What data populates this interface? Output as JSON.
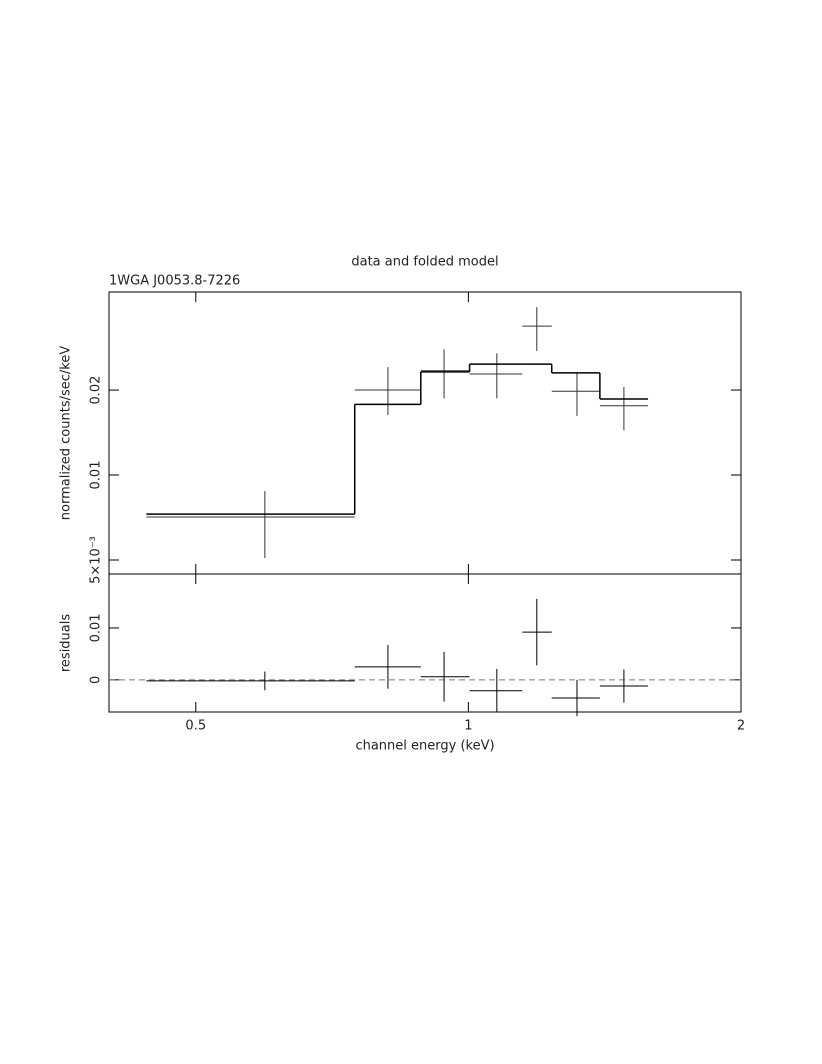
{
  "chart_data": [
    {
      "type": "errorbar",
      "title": "data and folded model",
      "subtitle": "1WGA J0053.8-7226",
      "y_label": "normalized counts/sec/keV",
      "x_log": true,
      "y_log": true,
      "xlim": [
        0.401,
        2
      ],
      "ylim": [
        0.00446,
        0.0445
      ],
      "yticks": [
        {
          "value": 0.005,
          "label": "5×10⁻³"
        },
        0.01,
        0.02
      ],
      "x": [
        0.596,
        0.815,
        0.94,
        1.075,
        1.19,
        1.318,
        1.485
      ],
      "x_bins": [
        0.441,
        0.749,
        0.886,
        1.003,
        1.147,
        1.236,
        1.397,
        1.579
      ],
      "series": [
        {
          "name": "data",
          "color": "#333333",
          "values": [
            0.0071,
            0.02,
            0.0234,
            0.0228,
            0.0337,
            0.0198,
            0.0176
          ],
          "lower": [
            0.00508,
            0.0163,
            0.0187,
            0.0187,
            0.0275,
            0.0162,
            0.0144
          ],
          "upper": [
            0.00878,
            0.0241,
            0.0279,
            0.027,
            0.0393,
            0.0232,
            0.0205
          ]
        },
        {
          "name": "model",
          "color": "#000000",
          "values": [
            0.00727,
            0.0178,
            0.0232,
            0.0247,
            0.0247,
            0.023,
            0.0186
          ]
        }
      ]
    },
    {
      "type": "residuals",
      "y_label": "residuals",
      "x_label": "channel energy (keV)",
      "x_log": true,
      "xlim": [
        0.401,
        2
      ],
      "xticks": [
        0.5,
        1,
        2
      ],
      "ylim": [
        -0.0062,
        0.0204
      ],
      "yticks": [
        0,
        0.01
      ],
      "zero_line": true,
      "series": [
        {
          "name": "residuals",
          "color": "#000000",
          "values": [
            -0.0002,
            0.0025,
            0.0006,
            -0.0021,
            0.0092,
            -0.0035,
            -0.0012
          ],
          "errors": [
            0.0018,
            0.0042,
            0.0048,
            0.0042,
            0.0064,
            0.0035,
            0.0032
          ]
        }
      ]
    }
  ]
}
